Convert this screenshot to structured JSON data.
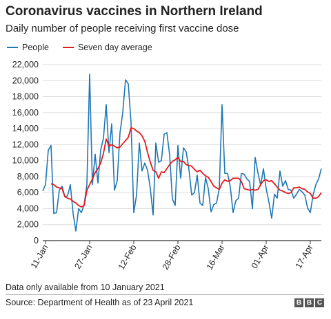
{
  "header": {
    "title": "Coronavirus vaccines in Northern Ireland",
    "subtitle": "Daily number of people receiving first vaccine dose"
  },
  "footer": {
    "note": "Data only available from 10 January 2021",
    "source": "Source: Department of Health as of 23 April 2021",
    "logo_letters": [
      "B",
      "B",
      "C"
    ]
  },
  "colors": {
    "people": "#1f77b4",
    "average": "#e41a1c",
    "axis": "#333333",
    "grid": "#dddddd"
  },
  "chart_data": {
    "type": "line",
    "x_start": "10-Jan",
    "x_end": "23-Apr",
    "x_tick_labels": [
      "11-Jan",
      "27-Jan",
      "12-Feb",
      "28-Feb",
      "16-Mar",
      "01-Apr",
      "17-Apr"
    ],
    "y_tick_labels": [
      "0",
      "2,000",
      "4,000",
      "6,000",
      "8,000",
      "10,000",
      "12,000",
      "14,000",
      "16,000",
      "18,000",
      "20,000",
      "22,000"
    ],
    "ylim": [
      0,
      22000
    ],
    "y_step": 2000,
    "grid": "horizontal",
    "legend_position": "top-left",
    "series": [
      {
        "name": "People",
        "color": "#1f77b4",
        "values": [
          6200,
          7000,
          11300,
          11900,
          3400,
          3500,
          6300,
          6800,
          5500,
          5600,
          7000,
          3400,
          1200,
          4000,
          3500,
          4500,
          7000,
          20800,
          7000,
          10800,
          7200,
          11300,
          12800,
          17000,
          11000,
          14600,
          6300,
          7500,
          13500,
          16000,
          20100,
          19600,
          14800,
          3500,
          5700,
          12200,
          8700,
          9700,
          8800,
          6500,
          3200,
          12200,
          9800,
          10000,
          13300,
          13500,
          10700,
          5200,
          4400,
          11900,
          7800,
          11600,
          11100,
          8900,
          5700,
          6000,
          8200,
          4700,
          4400,
          7900,
          6500,
          3600,
          4500,
          4700,
          6500,
          17000,
          8400,
          8400,
          6700,
          3500,
          5000,
          5300,
          8400,
          8300,
          7700,
          7400,
          4000,
          10400,
          8500,
          6900,
          9000,
          6500,
          4800,
          2800,
          5800,
          5300,
          8700,
          6800,
          7500,
          6400,
          6300,
          5300,
          5800,
          6400,
          6100,
          5700,
          4100,
          3500,
          5700,
          7000,
          7700,
          9000
        ]
      },
      {
        "name": "Seven day average",
        "color": "#e41a1c",
        "values": [
          null,
          null,
          null,
          7100,
          7000,
          6700,
          6600,
          6500,
          5500,
          5300,
          5200,
          4900,
          4700,
          4400,
          4200,
          4400,
          6300,
          7000,
          7700,
          8500,
          9000,
          9700,
          10900,
          12700,
          11800,
          12000,
          11800,
          11600,
          11700,
          12100,
          12500,
          12900,
          14100,
          14000,
          13700,
          13500,
          13100,
          12400,
          11000,
          9800,
          8800,
          8600,
          7800,
          8600,
          8500,
          9000,
          9500,
          9900,
          10100,
          10400,
          9900,
          9900,
          9500,
          9400,
          9300,
          8900,
          8600,
          8800,
          8400,
          8100,
          7900,
          7400,
          6800,
          6600,
          6400,
          7200,
          7600,
          7400,
          7500,
          7800,
          7800,
          7800,
          7400,
          6500,
          6400,
          6300,
          6400,
          6300,
          6400,
          7000,
          7500,
          7600,
          7400,
          7500,
          7100,
          6700,
          6300,
          6200,
          6000,
          5900,
          6000,
          6600,
          6600,
          6700,
          6500,
          6400,
          6100,
          5900,
          5300,
          5300,
          5500,
          6000
        ]
      }
    ]
  }
}
